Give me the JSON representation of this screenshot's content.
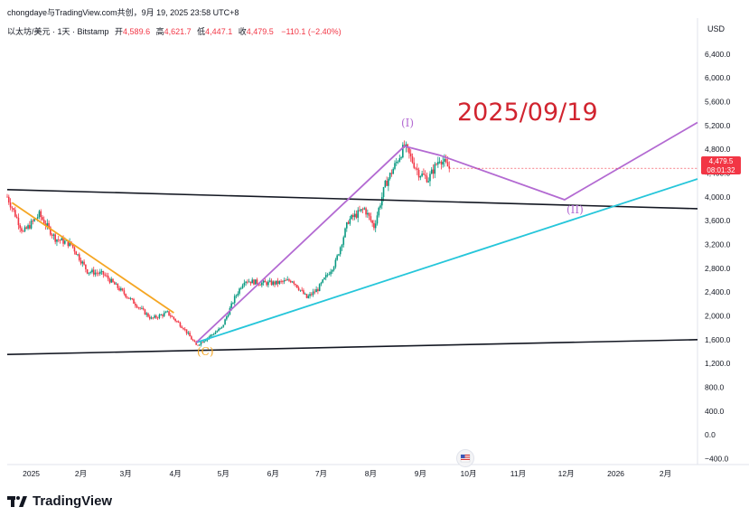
{
  "header": {
    "author_line": "chongdaye与TradingView.com共创，9月 19, 2025 23:58 UTC+8"
  },
  "symbol": {
    "name": "以太坊/美元 · 1天 · Bitstamp",
    "open_label": "开",
    "open": "4,589.6",
    "high_label": "高",
    "high": "4,621.7",
    "low_label": "低",
    "low": "4,447.1",
    "close_label": "收",
    "close": "4,479.5",
    "change": "−110.1 (−2.40%)"
  },
  "axis": {
    "currency": "USD"
  },
  "price_badge": {
    "price": "4,479.5",
    "countdown": "08:01:32"
  },
  "annotations": {
    "date_text": "2025/09/19",
    "wave_1": "(I)",
    "wave_2": "(II)",
    "wave_c": "(C)"
  },
  "footer": {
    "brand": "TradingView"
  },
  "colors": {
    "up": "#089981",
    "down": "#f23645",
    "purple_wave": "#b36ad2",
    "orange_trend": "#f5a623",
    "cyan_trend": "#26c6da",
    "black_line": "#131722",
    "date_red": "#d1242f"
  },
  "chart_data": {
    "type": "candlestick",
    "title": "",
    "y_axis": {
      "ticks": [
        6400,
        6000,
        5600,
        5200,
        4800,
        4400,
        4000,
        3600,
        3200,
        2800,
        2400,
        2000,
        1600,
        1200,
        800,
        400,
        0,
        -400
      ],
      "tick_labels": [
        "6,400.0",
        "6,000.0",
        "5,600.0",
        "5,200.0",
        "4,800.0",
        "4,400.0",
        "4,000.0",
        "3,600.0",
        "3,200.0",
        "2,800.0",
        "2,400.0",
        "2,000.0",
        "1,600.0",
        "1,200.0",
        "800.0",
        "400.0",
        "0.0",
        "−400.0"
      ],
      "range": [
        -500,
        6700
      ],
      "side": "right"
    },
    "x_axis": {
      "ticks": [
        "2025-01-01",
        "2025-02-01",
        "2025-03-01",
        "2025-04-01",
        "2025-05-01",
        "2025-06-01",
        "2025-07-01",
        "2025-08-01",
        "2025-09-01",
        "2025-10-01",
        "2025-11-01",
        "2025-12-01",
        "2026-01-01",
        "2026-02-01"
      ],
      "tick_labels": [
        "2025",
        "2月",
        "3月",
        "4月",
        "5月",
        "6月",
        "7月",
        "8月",
        "9月",
        "10月",
        "11月",
        "12月",
        "2026",
        "2月"
      ],
      "range": [
        "2024-12-17",
        "2026-02-21"
      ]
    },
    "price_path": [
      [
        "2024-12-17",
        4000
      ],
      [
        "2024-12-27",
        3400
      ],
      [
        "2025-01-06",
        3700
      ],
      [
        "2025-01-16",
        3300
      ],
      [
        "2025-01-26",
        3200
      ],
      [
        "2025-02-05",
        2750
      ],
      [
        "2025-02-15",
        2700
      ],
      [
        "2025-02-25",
        2450
      ],
      [
        "2025-03-07",
        2200
      ],
      [
        "2025-03-17",
        1950
      ],
      [
        "2025-03-27",
        2050
      ],
      [
        "2025-04-06",
        1800
      ],
      [
        "2025-04-14",
        1500
      ],
      [
        "2025-04-22",
        1650
      ],
      [
        "2025-04-30",
        1800
      ],
      [
        "2025-05-08",
        2300
      ],
      [
        "2025-05-14",
        2600
      ],
      [
        "2025-05-24",
        2550
      ],
      [
        "2025-06-03",
        2550
      ],
      [
        "2025-06-13",
        2600
      ],
      [
        "2025-06-22",
        2300
      ],
      [
        "2025-06-29",
        2450
      ],
      [
        "2025-07-10",
        2900
      ],
      [
        "2025-07-18",
        3600
      ],
      [
        "2025-07-28",
        3800
      ],
      [
        "2025-08-03",
        3500
      ],
      [
        "2025-08-10",
        4200
      ],
      [
        "2025-08-22",
        4850
      ],
      [
        "2025-08-31",
        4400
      ],
      [
        "2025-09-06",
        4300
      ],
      [
        "2025-09-13",
        4650
      ],
      [
        "2025-09-19",
        4480
      ]
    ],
    "trendlines": [
      {
        "name": "",
        "color": "#131722",
        "points": [
          [
            "2024-12-17",
            4120
          ],
          [
            "2026-02-21",
            3800
          ]
        ]
      },
      {
        "name": "",
        "color": "#131722",
        "points": [
          [
            "2024-12-17",
            1350
          ],
          [
            "2026-02-21",
            1600
          ]
        ]
      },
      {
        "name": "",
        "color": "#f5a623",
        "points": [
          [
            "2024-12-20",
            3900
          ],
          [
            "2025-03-31",
            2050
          ]
        ]
      },
      {
        "name": "",
        "color": "#26c6da",
        "points": [
          [
            "2025-04-14",
            1550
          ],
          [
            "2026-02-21",
            4300
          ]
        ]
      },
      {
        "name": "",
        "color": "#b36ad2",
        "points": [
          [
            "2025-04-14",
            1550
          ],
          [
            "2025-08-22",
            4850
          ],
          [
            "2025-09-13",
            4700
          ],
          [
            "2025-11-30",
            3950
          ],
          [
            "2026-02-21",
            5250
          ]
        ]
      }
    ]
  }
}
